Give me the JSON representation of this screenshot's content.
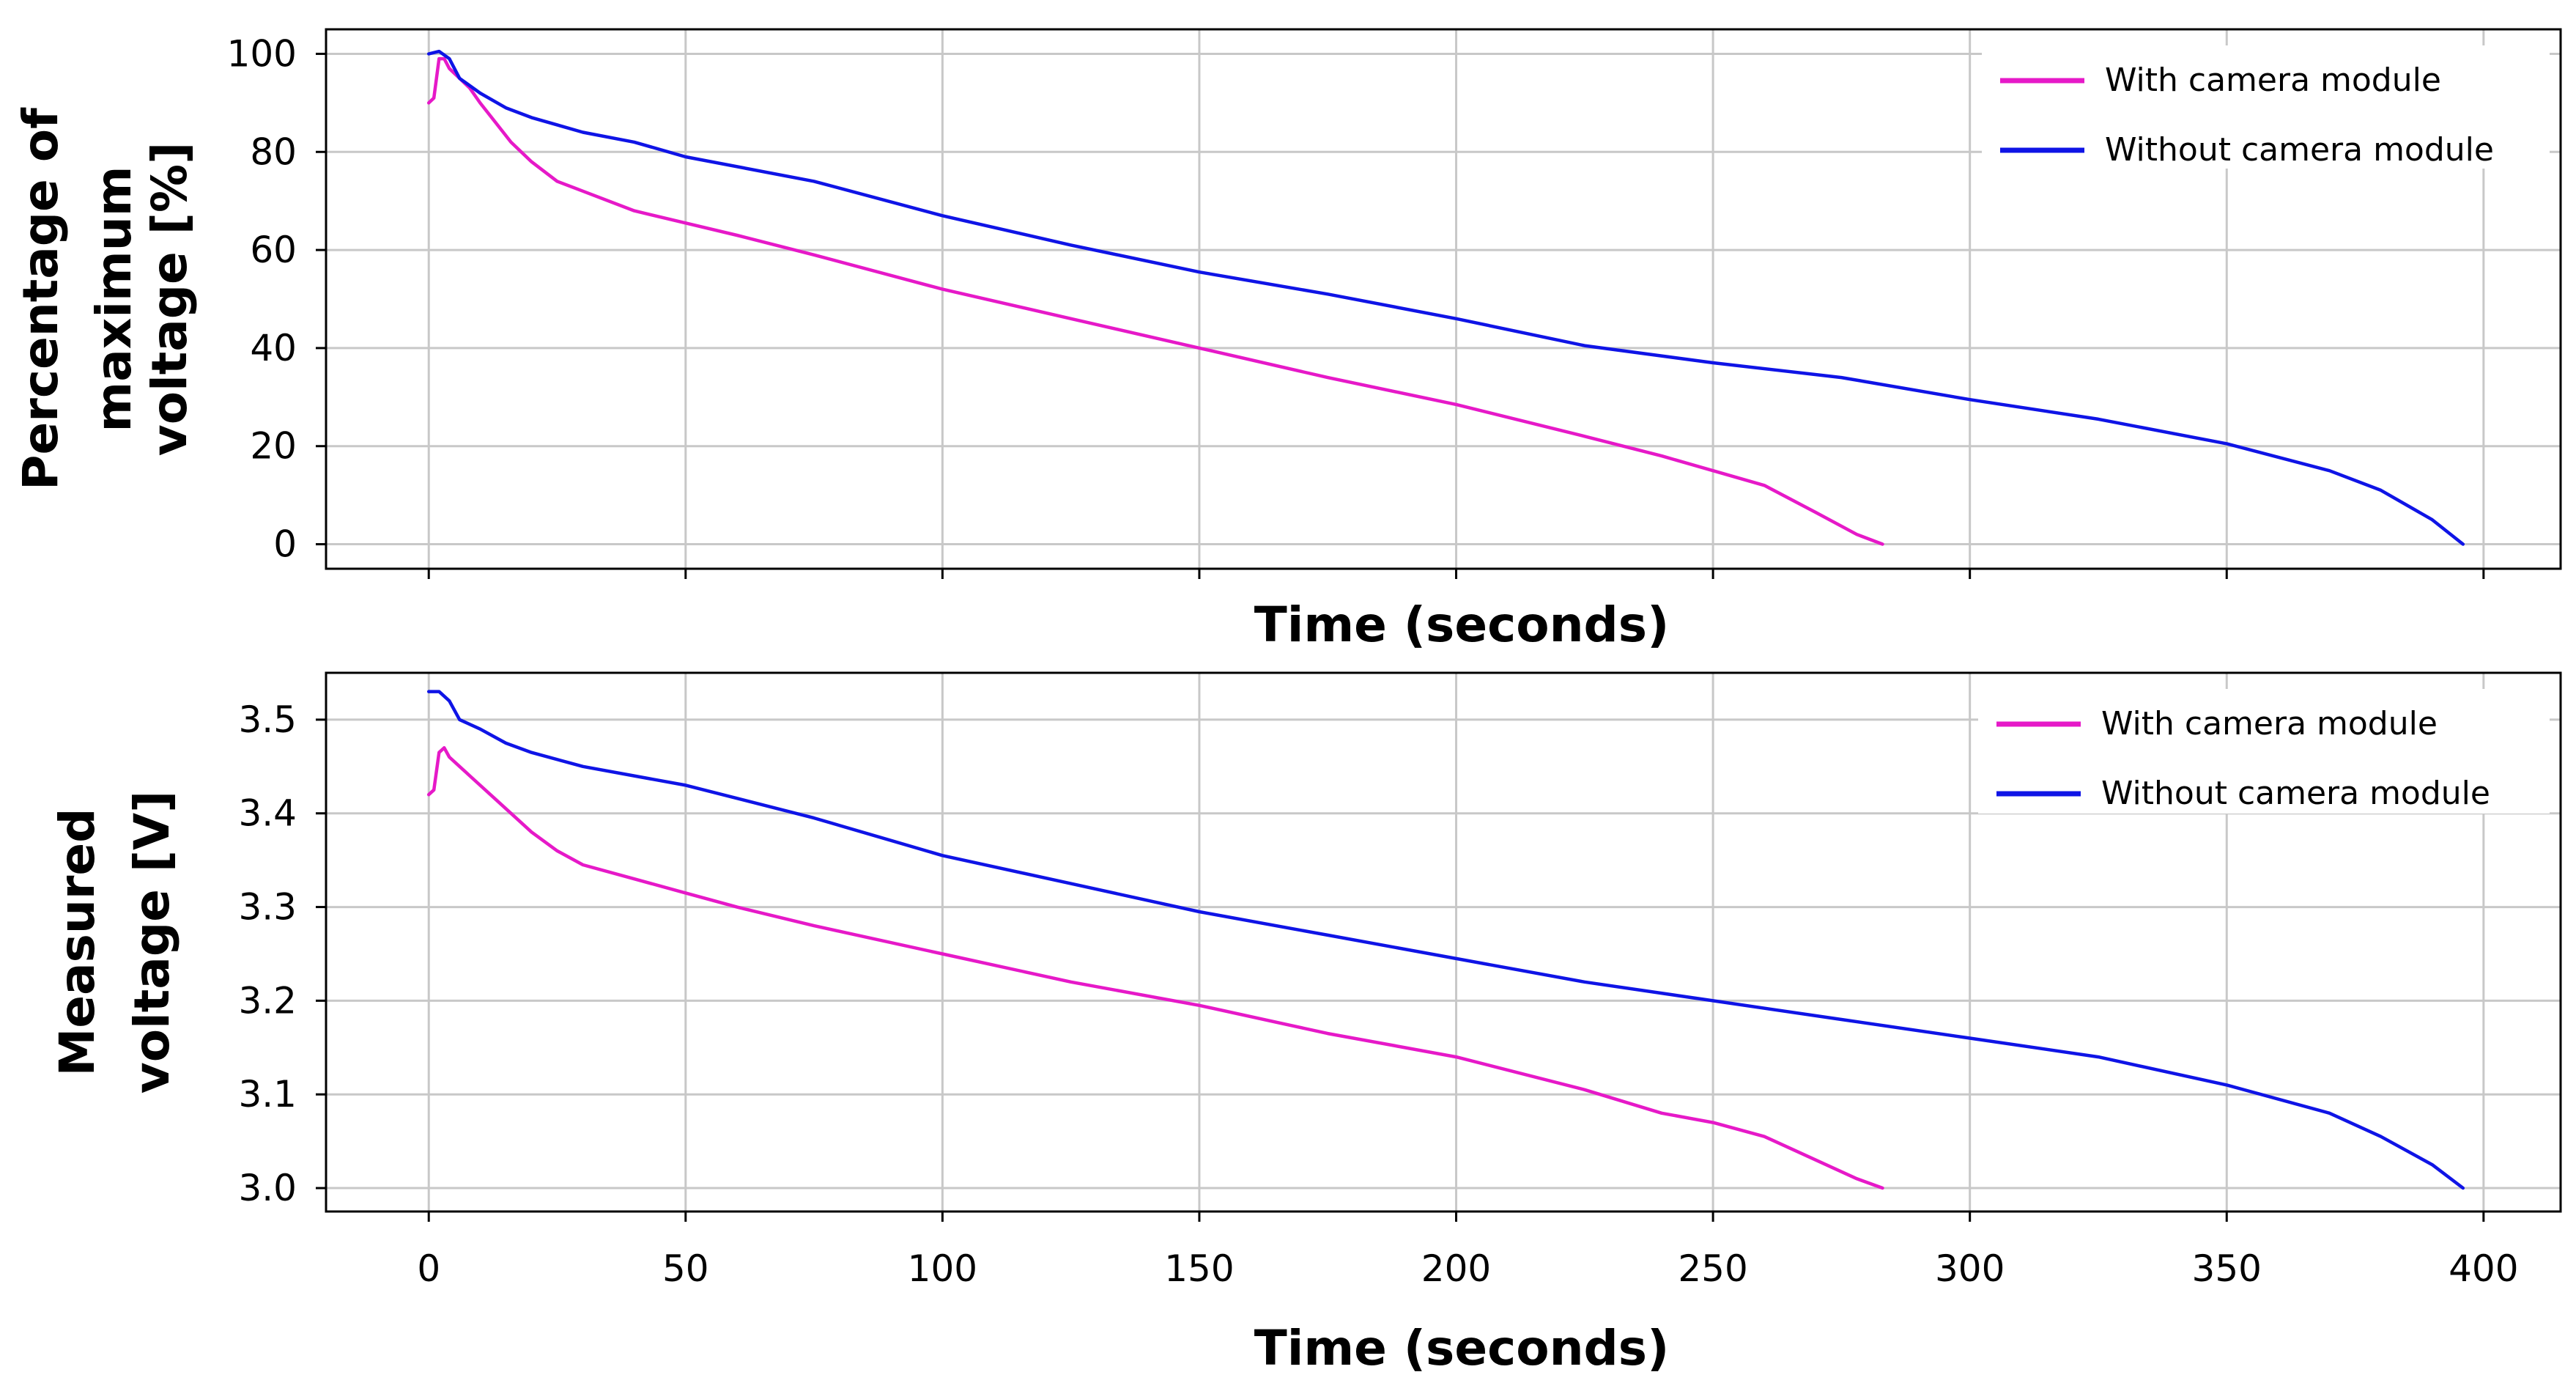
{
  "chart_data": [
    {
      "type": "line",
      "panel": "top",
      "title": "",
      "xlabel": "Time (seconds)",
      "ylabel_lines": [
        "Percentage of",
        "maximum",
        "voltage [%]"
      ],
      "xlim": [
        -20,
        415
      ],
      "ylim": [
        -5,
        105
      ],
      "x_gridlines": [
        0,
        50,
        100,
        150,
        200,
        250,
        300,
        350,
        400
      ],
      "y_ticks": [
        0,
        20,
        40,
        60,
        80,
        100
      ],
      "y_tick_labels": [
        "0",
        "20",
        "40",
        "60",
        "80",
        "100"
      ],
      "show_x_tick_labels": false,
      "grid": true,
      "legend": "top-right",
      "series": [
        {
          "name": "With camera module",
          "color": "#e619c8",
          "points": [
            [
              0,
              90
            ],
            [
              1,
              91
            ],
            [
              2,
              99
            ],
            [
              3,
              99
            ],
            [
              4,
              97
            ],
            [
              6,
              95
            ],
            [
              8,
              93
            ],
            [
              10,
              90
            ],
            [
              13,
              86
            ],
            [
              16,
              82
            ],
            [
              20,
              78
            ],
            [
              25,
              74
            ],
            [
              30,
              72
            ],
            [
              40,
              68
            ],
            [
              50,
              65.5
            ],
            [
              60,
              63
            ],
            [
              75,
              59
            ],
            [
              100,
              52
            ],
            [
              125,
              46
            ],
            [
              150,
              40
            ],
            [
              175,
              34
            ],
            [
              200,
              28.5
            ],
            [
              225,
              22
            ],
            [
              240,
              18
            ],
            [
              250,
              15
            ],
            [
              260,
              12
            ],
            [
              270,
              6.5
            ],
            [
              278,
              2
            ],
            [
              283,
              0
            ]
          ]
        },
        {
          "name": "Without camera module",
          "color": "#0f14e6",
          "points": [
            [
              0,
              100
            ],
            [
              2,
              100.5
            ],
            [
              4,
              99
            ],
            [
              6,
              95
            ],
            [
              10,
              92
            ],
            [
              15,
              89
            ],
            [
              20,
              87
            ],
            [
              30,
              84
            ],
            [
              40,
              82
            ],
            [
              50,
              79
            ],
            [
              75,
              74
            ],
            [
              100,
              67
            ],
            [
              125,
              61
            ],
            [
              150,
              55.5
            ],
            [
              175,
              51
            ],
            [
              200,
              46
            ],
            [
              225,
              40.5
            ],
            [
              250,
              37
            ],
            [
              275,
              34
            ],
            [
              300,
              29.5
            ],
            [
              325,
              25.5
            ],
            [
              350,
              20.5
            ],
            [
              370,
              15
            ],
            [
              380,
              11
            ],
            [
              390,
              5
            ],
            [
              396,
              0
            ]
          ]
        }
      ]
    },
    {
      "type": "line",
      "panel": "bottom",
      "title": "",
      "xlabel": "Time (seconds)",
      "ylabel_lines": [
        "Measured",
        "voltage [V]"
      ],
      "xlim": [
        -20,
        415
      ],
      "ylim": [
        2.975,
        3.55
      ],
      "x_ticks": [
        0,
        50,
        100,
        150,
        200,
        250,
        300,
        350,
        400
      ],
      "x_tick_labels": [
        "0",
        "50",
        "100",
        "150",
        "200",
        "250",
        "300",
        "350",
        "400"
      ],
      "y_ticks": [
        3.0,
        3.1,
        3.2,
        3.3,
        3.4,
        3.5
      ],
      "y_tick_labels": [
        "3.0",
        "3.1",
        "3.2",
        "3.3",
        "3.4",
        "3.5"
      ],
      "show_x_tick_labels": true,
      "grid": true,
      "legend": "top-right",
      "series": [
        {
          "name": "With camera module",
          "color": "#e619c8",
          "points": [
            [
              0,
              3.42
            ],
            [
              1,
              3.425
            ],
            [
              2,
              3.465
            ],
            [
              3,
              3.47
            ],
            [
              4,
              3.46
            ],
            [
              6,
              3.45
            ],
            [
              8,
              3.44
            ],
            [
              10,
              3.43
            ],
            [
              13,
              3.415
            ],
            [
              16,
              3.4
            ],
            [
              20,
              3.38
            ],
            [
              25,
              3.36
            ],
            [
              30,
              3.345
            ],
            [
              40,
              3.33
            ],
            [
              50,
              3.315
            ],
            [
              60,
              3.3
            ],
            [
              75,
              3.28
            ],
            [
              100,
              3.25
            ],
            [
              125,
              3.22
            ],
            [
              150,
              3.195
            ],
            [
              175,
              3.165
            ],
            [
              200,
              3.14
            ],
            [
              225,
              3.105
            ],
            [
              240,
              3.08
            ],
            [
              250,
              3.07
            ],
            [
              260,
              3.055
            ],
            [
              270,
              3.03
            ],
            [
              278,
              3.01
            ],
            [
              283,
              3.0
            ]
          ]
        },
        {
          "name": "Without camera module",
          "color": "#0f14e6",
          "points": [
            [
              0,
              3.53
            ],
            [
              2,
              3.53
            ],
            [
              4,
              3.52
            ],
            [
              6,
              3.5
            ],
            [
              10,
              3.49
            ],
            [
              15,
              3.475
            ],
            [
              20,
              3.465
            ],
            [
              30,
              3.45
            ],
            [
              40,
              3.44
            ],
            [
              50,
              3.43
            ],
            [
              75,
              3.395
            ],
            [
              100,
              3.355
            ],
            [
              125,
              3.325
            ],
            [
              150,
              3.295
            ],
            [
              175,
              3.27
            ],
            [
              200,
              3.245
            ],
            [
              225,
              3.22
            ],
            [
              250,
              3.2
            ],
            [
              275,
              3.18
            ],
            [
              300,
              3.16
            ],
            [
              325,
              3.14
            ],
            [
              350,
              3.11
            ],
            [
              370,
              3.08
            ],
            [
              380,
              3.055
            ],
            [
              390,
              3.025
            ],
            [
              396,
              3.0
            ]
          ]
        }
      ]
    }
  ]
}
